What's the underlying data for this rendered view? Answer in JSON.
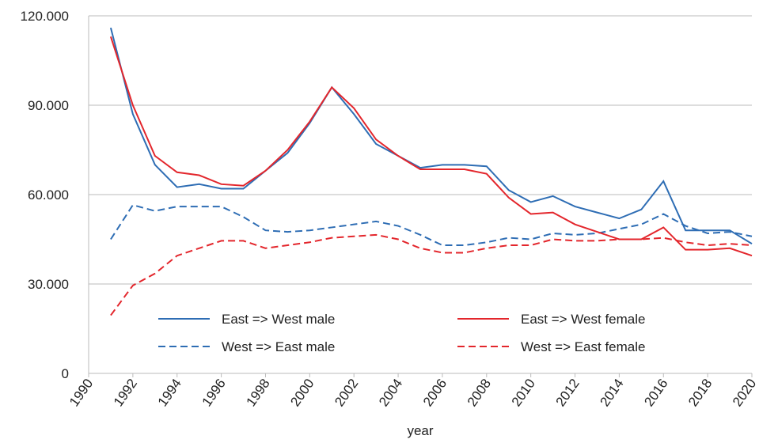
{
  "chart_data": {
    "type": "line",
    "xlabel": "year",
    "x": [
      1991,
      1992,
      1993,
      1994,
      1995,
      1996,
      1997,
      1998,
      1999,
      2000,
      2001,
      2002,
      2003,
      2004,
      2005,
      2006,
      2007,
      2008,
      2009,
      2010,
      2011,
      2012,
      2013,
      2014,
      2015,
      2016,
      2017,
      2018,
      2019,
      2020
    ],
    "xlim": [
      1990,
      2020
    ],
    "xticks": [
      1990,
      1992,
      1994,
      1996,
      1998,
      2000,
      2002,
      2004,
      2006,
      2008,
      2010,
      2012,
      2014,
      2016,
      2018,
      2020
    ],
    "ylim": [
      0,
      120000
    ],
    "yticks": [
      0,
      {
        "value": 30000,
        "label": "30.000"
      },
      {
        "value": 60000,
        "label": "60.000"
      },
      {
        "value": 90000,
        "label": "90.000"
      },
      {
        "value": 120000,
        "label": "120.000"
      }
    ],
    "grid": true,
    "series": [
      {
        "name": "East => West male",
        "color": "#2e6db4",
        "linestyle": "solid",
        "values": [
          116000,
          87000,
          70000,
          62500,
          63500,
          62000,
          62000,
          68000,
          74000,
          84000,
          96000,
          87000,
          77000,
          73000,
          69000,
          70000,
          70000,
          69500,
          61500,
          57500,
          59500,
          56000,
          54000,
          52000,
          55000,
          64500,
          48000,
          48000,
          48000,
          43500
        ]
      },
      {
        "name": "West => East male",
        "color": "#2e6db4",
        "linestyle": "dashed",
        "values": [
          45000,
          56500,
          54500,
          56000,
          56000,
          56000,
          52500,
          48000,
          47500,
          48000,
          49000,
          50000,
          51000,
          49500,
          46500,
          43000,
          43000,
          44000,
          45500,
          45000,
          47000,
          46500,
          47000,
          48500,
          50000,
          53500,
          49500,
          47000,
          47500,
          46000
        ]
      },
      {
        "name": "East => West female",
        "color": "#e3262c",
        "linestyle": "solid",
        "values": [
          113000,
          90000,
          73000,
          67500,
          66500,
          63500,
          63000,
          68000,
          75000,
          84500,
          96000,
          89000,
          78500,
          73000,
          68500,
          68500,
          68500,
          67000,
          59000,
          53500,
          54000,
          50000,
          47500,
          45000,
          45000,
          49000,
          41500,
          41500,
          42000,
          39500
        ]
      },
      {
        "name": "West => East female",
        "color": "#e3262c",
        "linestyle": "dashed",
        "values": [
          19500,
          29500,
          33500,
          39500,
          42000,
          44500,
          44500,
          42000,
          43000,
          44000,
          45500,
          46000,
          46500,
          45000,
          42000,
          40500,
          40500,
          42000,
          43000,
          43000,
          45000,
          44500,
          44500,
          45000,
          45000,
          45500,
          44000,
          43000,
          43500,
          43000
        ]
      }
    ]
  }
}
